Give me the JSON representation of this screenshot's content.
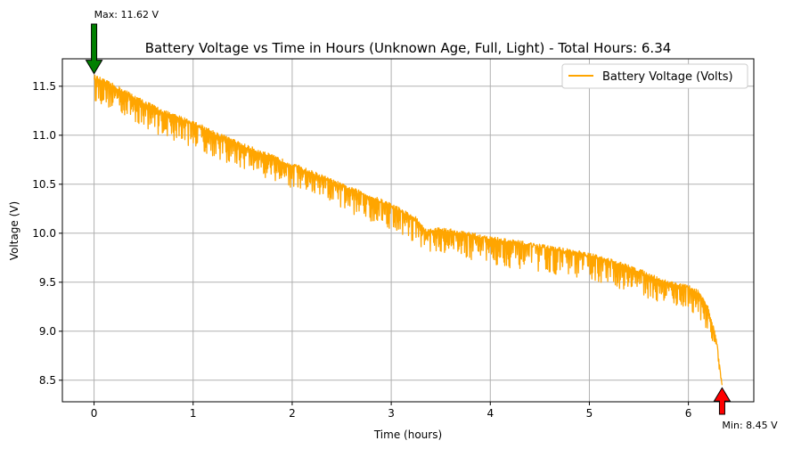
{
  "chart_data": {
    "type": "line",
    "title": "Battery Voltage vs Time in Hours (Unknown Age, Full, Light) - Total Hours: 6.34",
    "xlabel": "Time (hours)",
    "ylabel": "Voltage (V)",
    "xlim": [
      -0.32,
      6.66
    ],
    "ylim": [
      8.28,
      11.78
    ],
    "x_ticks": [
      0,
      1,
      2,
      3,
      4,
      5,
      6
    ],
    "y_ticks": [
      8.5,
      9.0,
      9.5,
      10.0,
      10.5,
      11.0,
      11.5
    ],
    "x_tick_labels": [
      "0",
      "1",
      "2",
      "3",
      "4",
      "5",
      "6"
    ],
    "y_tick_labels": [
      "8.5",
      "9.0",
      "9.5",
      "10.0",
      "10.5",
      "11.0",
      "11.5"
    ],
    "grid": true,
    "legend_position": "top-right",
    "series": [
      {
        "name": "Battery Voltage (Volts)",
        "color": "#ffa500",
        "upper_envelope": [
          [
            0.0,
            11.62
          ],
          [
            0.25,
            11.5
          ],
          [
            0.5,
            11.36
          ],
          [
            0.75,
            11.24
          ],
          [
            1.0,
            11.15
          ],
          [
            1.25,
            11.03
          ],
          [
            1.5,
            10.92
          ],
          [
            1.75,
            10.82
          ],
          [
            2.0,
            10.72
          ],
          [
            2.25,
            10.62
          ],
          [
            2.5,
            10.51
          ],
          [
            2.75,
            10.41
          ],
          [
            3.0,
            10.31
          ],
          [
            3.25,
            10.17
          ],
          [
            3.35,
            10.04
          ],
          [
            3.5,
            10.06
          ],
          [
            3.75,
            10.02
          ],
          [
            4.0,
            9.97
          ],
          [
            4.25,
            9.93
          ],
          [
            4.5,
            9.89
          ],
          [
            4.75,
            9.85
          ],
          [
            5.0,
            9.8
          ],
          [
            5.25,
            9.73
          ],
          [
            5.5,
            9.64
          ],
          [
            5.75,
            9.53
          ],
          [
            6.0,
            9.47
          ],
          [
            6.1,
            9.42
          ],
          [
            6.2,
            9.25
          ],
          [
            6.28,
            8.95
          ],
          [
            6.34,
            8.45
          ]
        ],
        "lower_envelope": [
          [
            0.0,
            11.35
          ],
          [
            0.25,
            11.22
          ],
          [
            0.5,
            11.08
          ],
          [
            0.75,
            10.96
          ],
          [
            1.0,
            10.88
          ],
          [
            1.25,
            10.75
          ],
          [
            1.5,
            10.65
          ],
          [
            1.75,
            10.55
          ],
          [
            2.0,
            10.45
          ],
          [
            2.25,
            10.35
          ],
          [
            2.5,
            10.24
          ],
          [
            2.75,
            10.14
          ],
          [
            3.0,
            10.04
          ],
          [
            3.25,
            9.9
          ],
          [
            3.35,
            9.82
          ],
          [
            3.5,
            9.8
          ],
          [
            3.75,
            9.74
          ],
          [
            4.0,
            9.68
          ],
          [
            4.25,
            9.64
          ],
          [
            4.5,
            9.6
          ],
          [
            4.75,
            9.57
          ],
          [
            5.0,
            9.52
          ],
          [
            5.25,
            9.45
          ],
          [
            5.5,
            9.37
          ],
          [
            5.75,
            9.28
          ],
          [
            6.0,
            9.22
          ],
          [
            6.1,
            9.15
          ],
          [
            6.2,
            9.0
          ],
          [
            6.28,
            8.75
          ],
          [
            6.34,
            8.45
          ]
        ]
      }
    ],
    "annotations": [
      {
        "text": "Max: 11.62 V",
        "x": 0.0,
        "y": 11.62,
        "color": "#008000",
        "arrow": "down"
      },
      {
        "text": "Min: 8.45 V",
        "x": 6.34,
        "y": 8.45,
        "color": "#ff0000",
        "arrow": "up"
      }
    ]
  }
}
